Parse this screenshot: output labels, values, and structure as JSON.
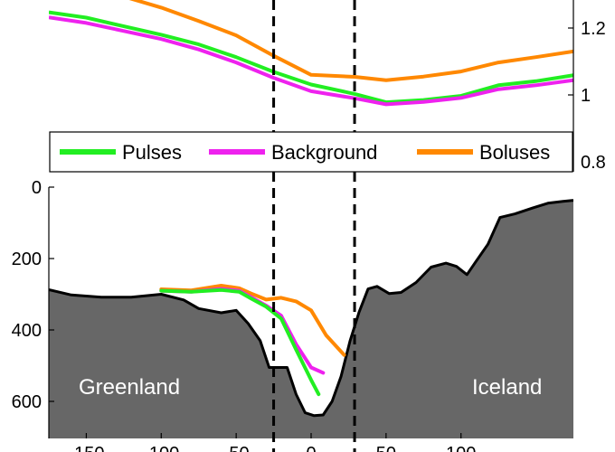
{
  "chart_data": [
    {
      "type": "line",
      "panel": "top",
      "xlim": [
        -175,
        175
      ],
      "ylim": [
        0.8,
        1.3
      ],
      "y_ticks": [
        "0.8",
        "1",
        "1.2"
      ],
      "y_tick_values": [
        0.8,
        1.0,
        1.2
      ],
      "y_axis_side": "right",
      "vertical_reference_lines": [
        -25,
        29
      ],
      "legend": {
        "placement": "inside-bottom",
        "entries": [
          "Pulses",
          "Background",
          "Boluses"
        ]
      },
      "series": [
        {
          "name": "Pulses",
          "color": "#22ee22",
          "x": [
            -175,
            -150,
            -125,
            -100,
            -75,
            -50,
            -25,
            0,
            29,
            50,
            75,
            100,
            125,
            150,
            175
          ],
          "y": [
            1.247,
            1.231,
            1.205,
            1.18,
            1.151,
            1.113,
            1.069,
            1.031,
            1.003,
            0.978,
            0.985,
            0.997,
            1.029,
            1.041,
            1.059
          ]
        },
        {
          "name": "Background",
          "color": "#ee22ee",
          "x": [
            -175,
            -150,
            -125,
            -100,
            -75,
            -50,
            -25,
            0,
            29,
            50,
            75,
            100,
            125,
            150,
            175
          ],
          "y": [
            1.232,
            1.215,
            1.191,
            1.167,
            1.136,
            1.097,
            1.051,
            1.011,
            0.99,
            0.972,
            0.979,
            0.991,
            1.017,
            1.029,
            1.044
          ]
        },
        {
          "name": "Boluses",
          "color": "#ff8800",
          "x": [
            -175,
            -150,
            -125,
            -100,
            -75,
            -50,
            -25,
            0,
            29,
            50,
            75,
            100,
            125,
            150,
            175
          ],
          "y": [
            1.345,
            1.323,
            1.294,
            1.261,
            1.221,
            1.178,
            1.117,
            1.06,
            1.054,
            1.044,
            1.055,
            1.07,
            1.097,
            1.113,
            1.13
          ]
        }
      ]
    },
    {
      "type": "area",
      "panel": "bottom",
      "xlim": [
        -175,
        175
      ],
      "ylim": [
        0,
        700
      ],
      "y_inverted": true,
      "y_ticks": [
        "0",
        "200",
        "400",
        "600"
      ],
      "y_tick_values": [
        0,
        200,
        400,
        600
      ],
      "x_ticks": [
        "-150",
        "-100",
        "-50",
        "0",
        "50",
        "100"
      ],
      "x_tick_values": [
        -150,
        -100,
        -50,
        0,
        50,
        100
      ],
      "vertical_reference_lines": [
        -25,
        29
      ],
      "fill_color": "#676767",
      "bathymetry": {
        "x": [
          -175,
          -160,
          -140,
          -120,
          -100,
          -85,
          -75,
          -60,
          -50,
          -42,
          -34,
          -28,
          -22,
          -16,
          -10,
          -4,
          2,
          8,
          14,
          20,
          26,
          32,
          38,
          44,
          52,
          60,
          70,
          80,
          90,
          97,
          104,
          110,
          118,
          126,
          136,
          148,
          158,
          168,
          175
        ],
        "y": [
          287,
          302,
          308,
          308,
          300,
          316,
          340,
          352,
          345,
          382,
          430,
          505,
          505,
          505,
          580,
          632,
          640,
          638,
          600,
          530,
          430,
          350,
          285,
          278,
          298,
          295,
          267,
          224,
          213,
          222,
          245,
          208,
          160,
          85,
          75,
          58,
          45,
          40,
          37
        ]
      },
      "series": [
        {
          "name": "Pulses",
          "color": "#22ee22",
          "x": [
            -100,
            -80,
            -60,
            -48,
            -40,
            -30,
            -20,
            -10,
            0,
            5
          ],
          "y": [
            290,
            293,
            288,
            293,
            312,
            335,
            368,
            455,
            540,
            580
          ]
        },
        {
          "name": "Background",
          "color": "#ee22ee",
          "x": [
            -100,
            -80,
            -60,
            -48,
            -40,
            -30,
            -20,
            -10,
            0,
            8
          ],
          "y": [
            290,
            293,
            285,
            290,
            308,
            332,
            360,
            440,
            505,
            520
          ]
        },
        {
          "name": "Boluses",
          "color": "#ff8800",
          "x": [
            -100,
            -80,
            -60,
            -48,
            -40,
            -30,
            -20,
            -10,
            0,
            10,
            22
          ],
          "y": [
            286,
            289,
            276,
            283,
            298,
            315,
            310,
            320,
            345,
            415,
            470
          ]
        }
      ],
      "annotations": [
        "Greenland",
        "Iceland"
      ]
    }
  ]
}
